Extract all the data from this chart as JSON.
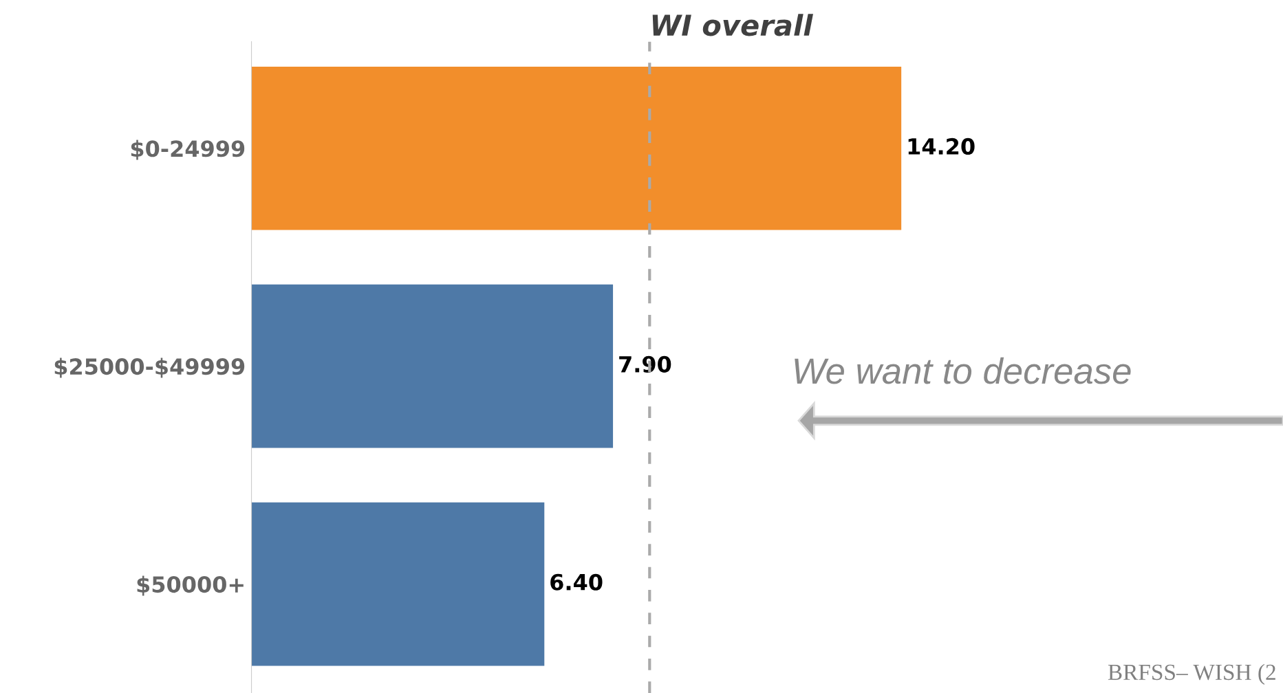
{
  "chart_data": {
    "type": "bar",
    "orientation": "horizontal",
    "categories": [
      "$0-24999",
      "$25000-$49999",
      "$50000+"
    ],
    "values": [
      14.2,
      7.9,
      6.4
    ],
    "value_labels": [
      "14.20",
      "7.90",
      "6.40"
    ],
    "colors": [
      "#f28e2b",
      "#4e79a7",
      "#4e79a7"
    ],
    "tick_labels": "y",
    "grid": false,
    "ref_lines": [
      {
        "axis": "x",
        "value": 8.7,
        "label": "WI overall",
        "color": "#aaaaaa",
        "line_style": "dashed"
      }
    ],
    "annotations": [
      "We want to decrease",
      "BRFSS– WISH (2"
    ]
  }
}
